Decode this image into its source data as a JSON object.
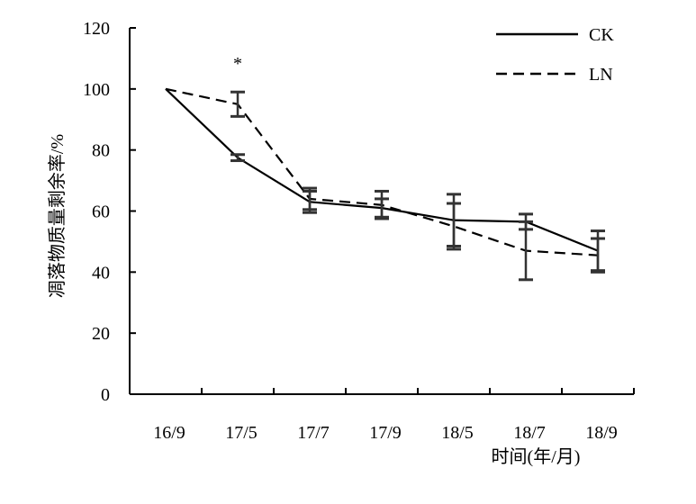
{
  "chart_data": {
    "type": "line",
    "categories": [
      "16/9",
      "17/5",
      "17/7",
      "17/9",
      "18/5",
      "18/7",
      "18/9"
    ],
    "series": [
      {
        "name": "CK",
        "style": "solid",
        "values": [
          100,
          77.5,
          63,
          61,
          57,
          56.5,
          47
        ],
        "error": [
          0,
          1,
          3.5,
          3,
          8.5,
          2.5,
          6.5
        ]
      },
      {
        "name": "LN",
        "style": "dashed",
        "values": [
          100,
          95,
          64,
          62,
          55,
          47,
          45.5
        ],
        "error": [
          0,
          4,
          3.5,
          4.5,
          7.5,
          9.5,
          5.5
        ]
      }
    ],
    "yticks": [
      0,
      20,
      40,
      60,
      80,
      100,
      120
    ],
    "ylim": [
      0,
      120
    ],
    "ylabel": "凋落物质量剩余率/%",
    "xlabel": "时间(年/月)",
    "annotations": [
      {
        "text": "*",
        "category": "17/5"
      }
    ],
    "legend_position": "top-right",
    "colors": {
      "line": "#000000"
    }
  }
}
